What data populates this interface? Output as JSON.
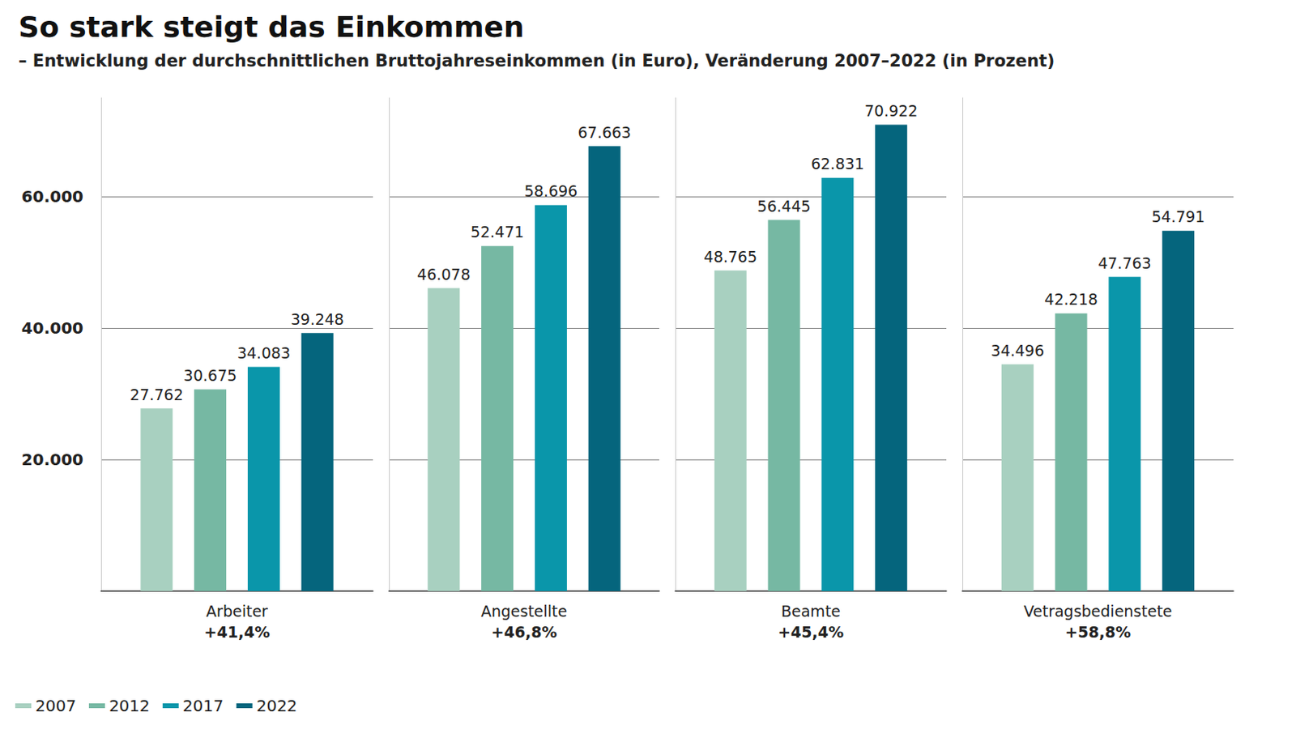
{
  "chart_data": {
    "type": "bar",
    "title": "So stark steigt das Einkommen",
    "subtitle": "– Entwicklung der durchschnittlichen Bruttojahreseinkommen (in Euro), Veränderung 2007–2022 (in Prozent)",
    "categories": [
      "Arbeiter",
      "Angestellte",
      "Beamte",
      "Vetragsbedienstete"
    ],
    "category_notes": [
      "+41,4%",
      "+46,8%",
      "+45,4%",
      "+58,8%"
    ],
    "series": [
      {
        "name": "2007",
        "color": "#a8d0c0",
        "values": [
          27762,
          46078,
          48765,
          34496
        ],
        "value_labels": [
          "27.762",
          "46.078",
          "48.765",
          "34.496"
        ]
      },
      {
        "name": "2012",
        "color": "#76b8a3",
        "values": [
          30675,
          52471,
          56445,
          42218
        ],
        "value_labels": [
          "30.675",
          "52.471",
          "56.445",
          "42.218"
        ]
      },
      {
        "name": "2017",
        "color": "#0a96aa",
        "values": [
          34083,
          58696,
          62831,
          47763
        ],
        "value_labels": [
          "34.083",
          "58.696",
          "62.831",
          "47.763"
        ]
      },
      {
        "name": "2022",
        "color": "#05657d",
        "values": [
          39248,
          67663,
          70922,
          54791
        ],
        "value_labels": [
          "39.248",
          "67.663",
          "70.922",
          "54.791"
        ]
      }
    ],
    "ylim": [
      0,
      75000
    ],
    "yticks": [
      {
        "value": 20000,
        "label": "20.000"
      },
      {
        "value": 40000,
        "label": "40.000"
      },
      {
        "value": 60000,
        "label": "60.000"
      }
    ],
    "grid": true,
    "legend": "bottom-left",
    "data_labels": true
  }
}
